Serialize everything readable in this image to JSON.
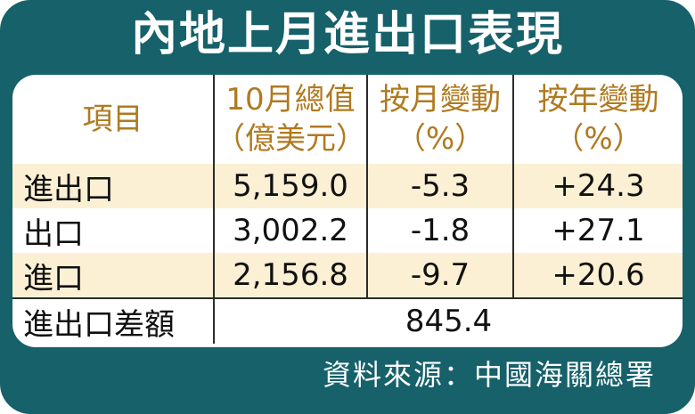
{
  "title": "內地上月進出口表現",
  "columns": [
    {
      "line1": "項目",
      "line2": ""
    },
    {
      "line1": "10月總值",
      "line2": "（億美元）"
    },
    {
      "line1": "按月變動",
      "line2": "（%）"
    },
    {
      "line1": "按年變動",
      "line2": "（%）"
    }
  ],
  "rows": [
    {
      "item": "進出口",
      "value": "5,159.0",
      "mom": "-5.3",
      "yoy": "+24.3"
    },
    {
      "item": "出口",
      "value": "3,002.2",
      "mom": "-1.8",
      "yoy": "+27.1"
    },
    {
      "item": "進口",
      "value": "2,156.8",
      "mom": "-9.7",
      "yoy": "+20.6"
    }
  ],
  "balance": {
    "item": "進出口差額",
    "value": "845.4"
  },
  "source": "資料來源：中國海關總署",
  "colors": {
    "frame": "#16616a",
    "header_text": "#b07a1f",
    "row_shade": "#fbf0d4"
  }
}
